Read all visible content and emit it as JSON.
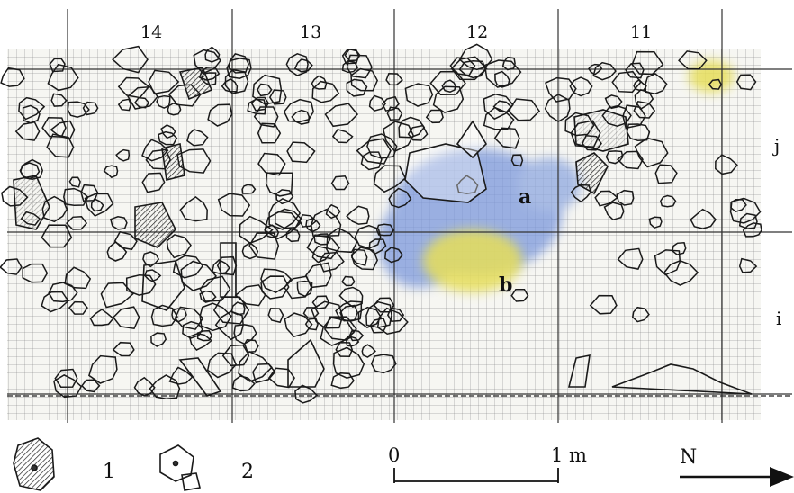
{
  "grid_columns": [
    "14",
    "13",
    "12",
    "11"
  ],
  "grid_rows": [
    "j",
    "i"
  ],
  "annotations": {
    "a": "a",
    "b": "b"
  },
  "legend": [
    {
      "number": "1",
      "icon": "shaded-stone-icon"
    },
    {
      "number": "2",
      "icon": "unshaded-stone-icon"
    }
  ],
  "scale_bar": {
    "start": "0",
    "end": "1",
    "unit": "m"
  },
  "north_arrow": {
    "label": "N"
  },
  "colors": {
    "zone_a": "#6f8fd6",
    "zone_b": "#e8e060",
    "grid": "#555555",
    "stones": "#1a1a1a",
    "paper": "#f6f6f2"
  }
}
